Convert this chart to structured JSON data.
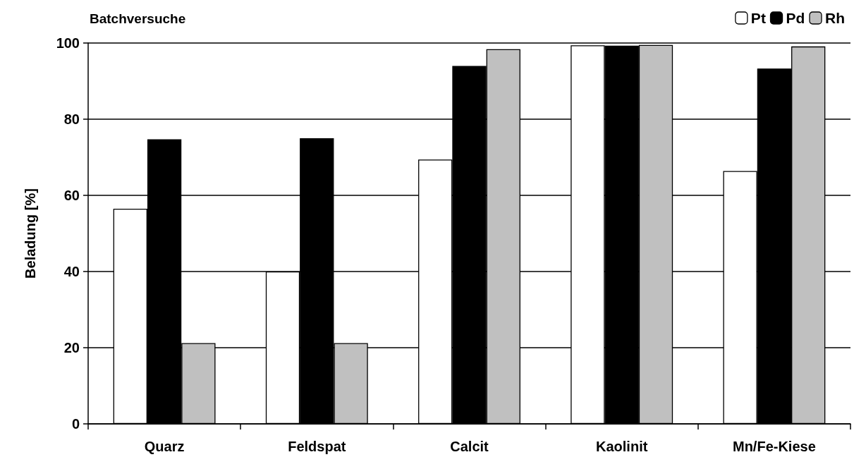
{
  "chart_data": {
    "type": "bar",
    "title": "Batchversuche",
    "ylabel": "Beladung [%]",
    "categories": [
      "Quarz",
      "Feldspat",
      "Calcit",
      "Kaolinit",
      "Mn/Fe-Kiese"
    ],
    "series": [
      {
        "name": "Pt",
        "color": "#ffffff",
        "values": [
          56.5,
          40,
          69.4,
          99.4,
          66.4
        ]
      },
      {
        "name": "Pd",
        "color": "#000000",
        "values": [
          74.7,
          75.0,
          94.0,
          99.3,
          93.3
        ]
      },
      {
        "name": "Rh",
        "color": "#c0c0c0",
        "values": [
          21.2,
          21.2,
          98.4,
          99.5,
          99.1
        ]
      }
    ],
    "ylim": [
      0,
      100
    ],
    "yticks": [
      0,
      20,
      40,
      60,
      80,
      100
    ],
    "grid": "y",
    "legend": "top right"
  }
}
